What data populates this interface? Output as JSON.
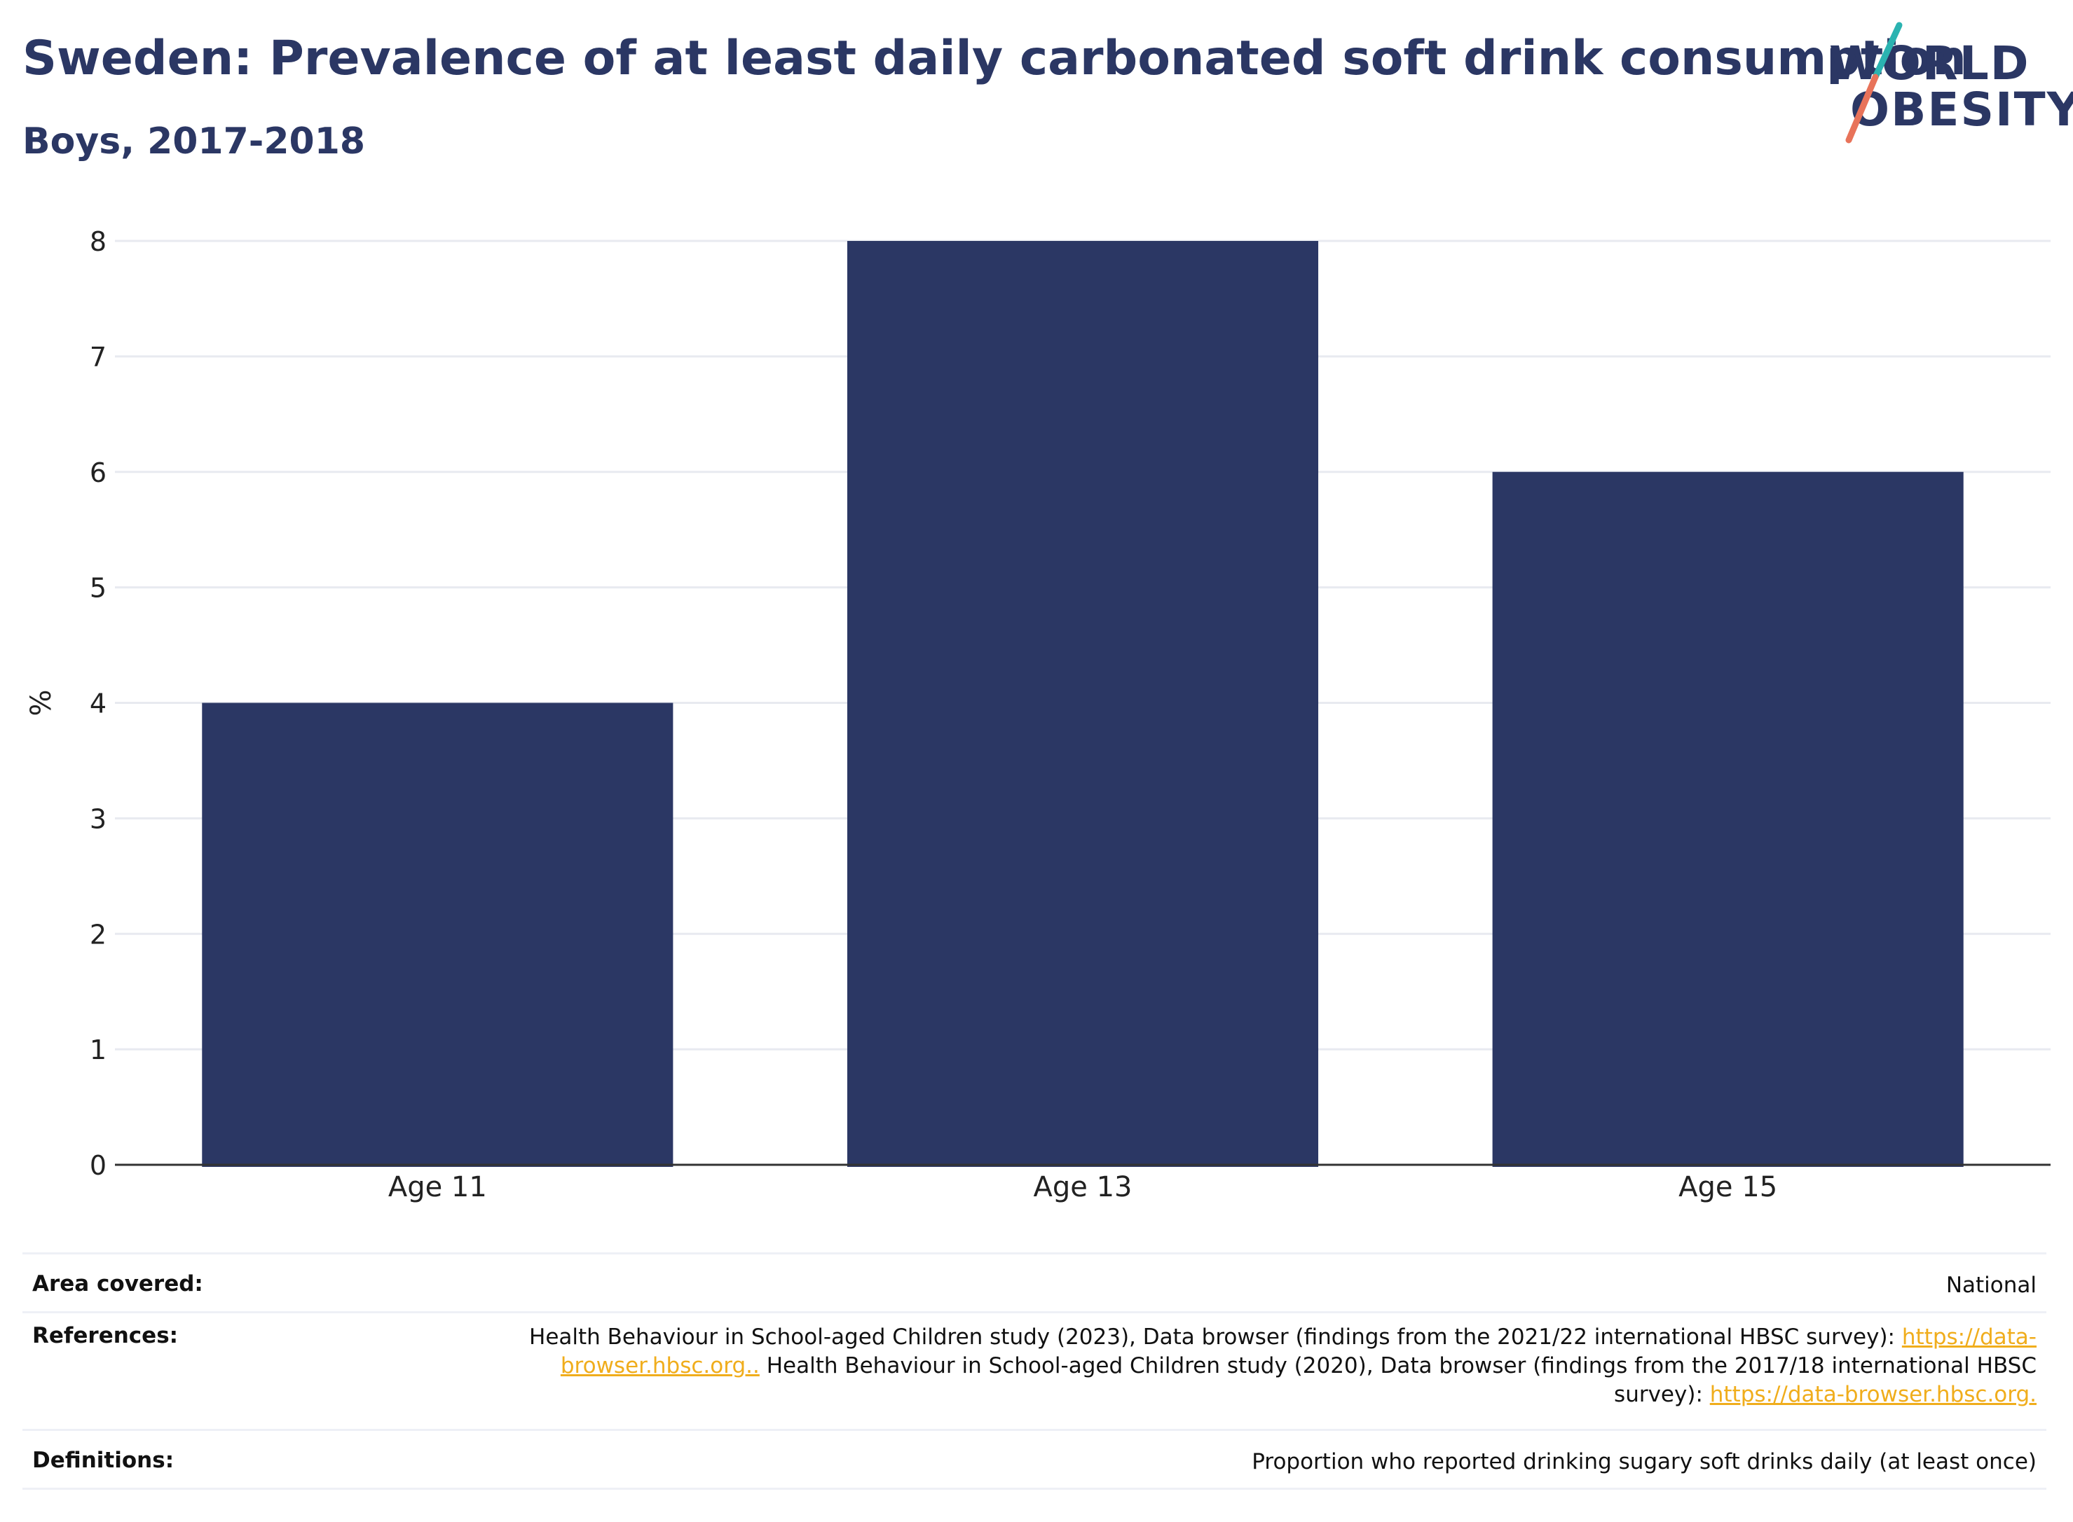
{
  "header": {
    "title": "Sweden: Prevalence of at least daily carbonated soft drink consumption",
    "subtitle": "Boys, 2017-2018"
  },
  "logo": {
    "line1": "WORLD",
    "line2": "OBESITY",
    "colors": {
      "text": "#2b3764",
      "slash_top": "#2bb3b1",
      "slash_bottom": "#e8735a"
    }
  },
  "chart_data": {
    "type": "bar",
    "categories": [
      "Age 11",
      "Age 13",
      "Age 15"
    ],
    "values": [
      4,
      8,
      6
    ],
    "xlabel": "",
    "ylabel": "%",
    "ylim": [
      0,
      8
    ],
    "yticks": [
      0,
      1,
      2,
      3,
      4,
      5,
      6,
      7,
      8
    ],
    "grid": true,
    "bar_color": "#2b3764"
  },
  "info": {
    "area": {
      "label": "Area covered:",
      "value": "National"
    },
    "references": {
      "label": "References:",
      "text1": "Health Behaviour in School-aged Children study (2023), Data browser (findings from the 2021/22 international HBSC survey): ",
      "link1": "https://data-browser.hbsc.org..",
      "text2": " Health Behaviour in School-aged Children study (2020), Data browser (findings from the 2017/18 international HBSC survey): ",
      "link2": "https://data-browser.hbsc.org."
    },
    "definitions": {
      "label": "Definitions:",
      "value": "Proportion who reported drinking sugary soft drinks daily (at least once)"
    }
  }
}
